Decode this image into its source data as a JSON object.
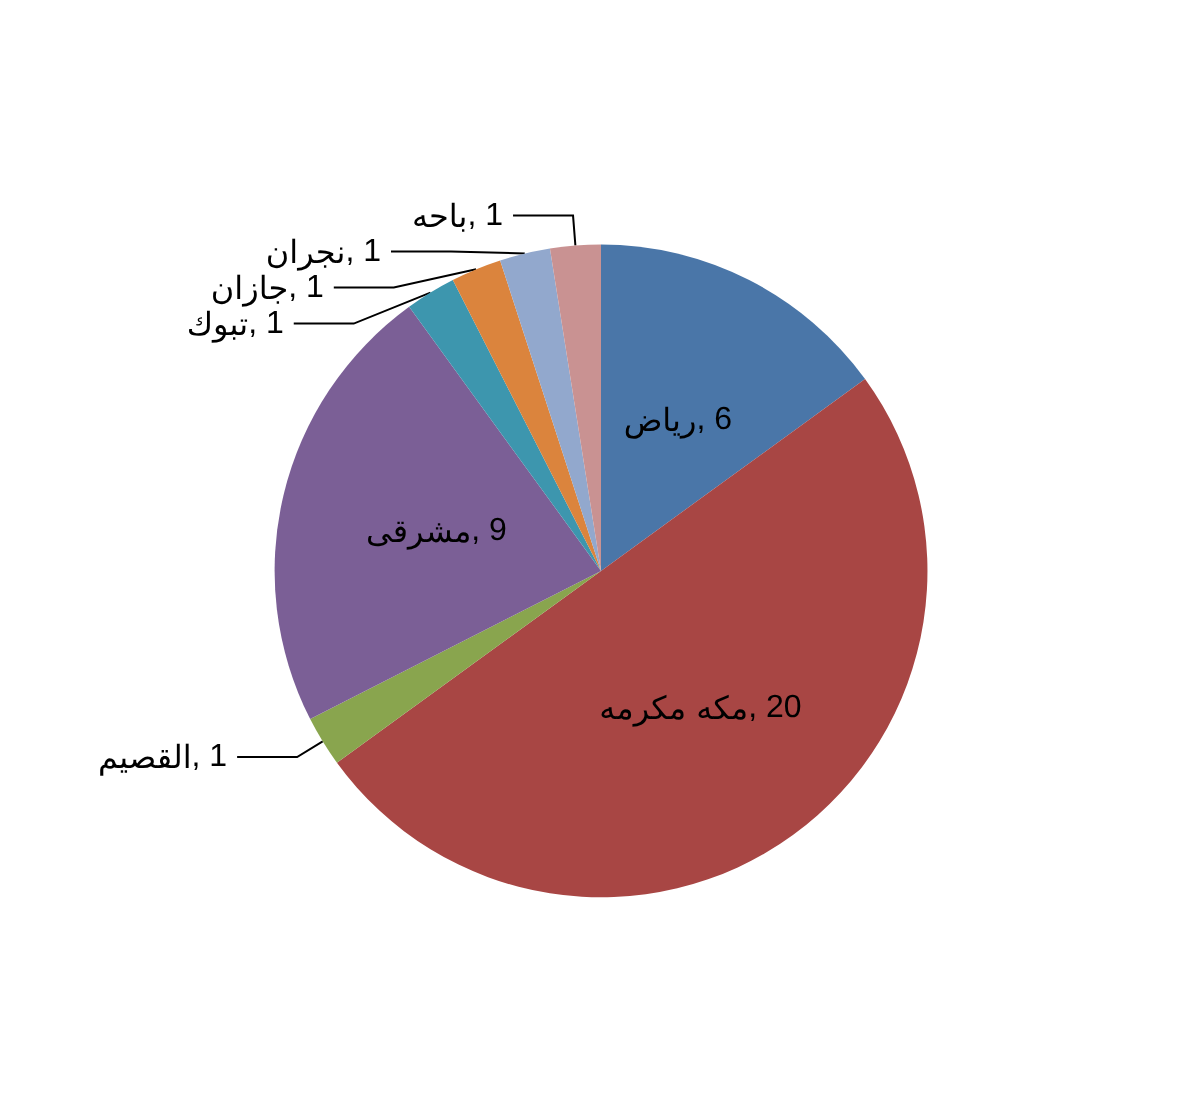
{
  "chart_data": {
    "type": "pie",
    "categories": [
      "رياض",
      "مكه مكرمه",
      "القصيم",
      "مشرقى",
      "تبوك",
      "جازان",
      "نجران",
      "باحه"
    ],
    "values": [
      6,
      20,
      1,
      9,
      1,
      1,
      1,
      1
    ],
    "colors": [
      "#4a76a8",
      "#a84644",
      "#89a54e",
      "#7b5f96",
      "#3d96ae",
      "#db843d",
      "#92a8cd",
      "#c99292"
    ],
    "value_labels": [
      ", 6",
      ", 20",
      ", 1",
      ", 9",
      ", 1",
      ", 1",
      ", 1",
      ", 1"
    ],
    "legend": false
  }
}
